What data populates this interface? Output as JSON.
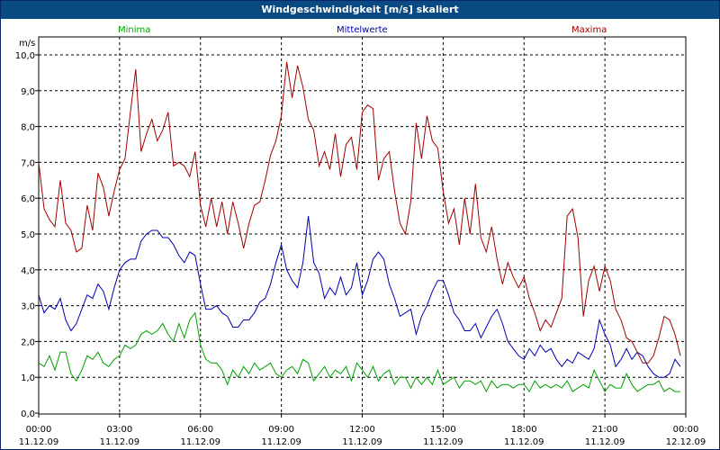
{
  "window": {
    "title": "Windgeschwindigkeit [m/s] skaliert"
  },
  "chart_data": {
    "type": "line",
    "title": "Windgeschwindigkeit [m/s] skaliert",
    "ylabel": "m/s",
    "ylim": [
      0,
      10
    ],
    "y_ticks": [
      "0,0",
      "1,0",
      "2,0",
      "3,0",
      "4,0",
      "5,0",
      "6,0",
      "7,0",
      "8,0",
      "9,0",
      "10,0"
    ],
    "x_ticks": [
      {
        "time": "00:00",
        "date": "11.12.09"
      },
      {
        "time": "03:00",
        "date": "11.12.09"
      },
      {
        "time": "06:00",
        "date": "11.12.09"
      },
      {
        "time": "09:00",
        "date": "11.12.09"
      },
      {
        "time": "12:00",
        "date": "11.12.09"
      },
      {
        "time": "15:00",
        "date": "11.12.09"
      },
      {
        "time": "18:00",
        "date": "11.12.09"
      },
      {
        "time": "21:00",
        "date": "11.12.09"
      },
      {
        "time": "00:00",
        "date": "12.12.09"
      }
    ],
    "grid": true,
    "x_hours": [
      0,
      0.2,
      0.4,
      0.6,
      0.8,
      1.0,
      1.2,
      1.4,
      1.6,
      1.8,
      2.0,
      2.2,
      2.4,
      2.6,
      2.8,
      3.0,
      3.2,
      3.4,
      3.6,
      3.8,
      4.0,
      4.2,
      4.4,
      4.6,
      4.8,
      5.0,
      5.2,
      5.4,
      5.6,
      5.8,
      6.0,
      6.2,
      6.4,
      6.6,
      6.8,
      7.0,
      7.2,
      7.4,
      7.6,
      7.8,
      8.0,
      8.2,
      8.4,
      8.6,
      8.8,
      9.0,
      9.2,
      9.4,
      9.6,
      9.8,
      10.0,
      10.2,
      10.4,
      10.6,
      10.8,
      11.0,
      11.2,
      11.4,
      11.6,
      11.8,
      12.0,
      12.2,
      12.4,
      12.6,
      12.8,
      13.0,
      13.2,
      13.4,
      13.6,
      13.8,
      14.0,
      14.2,
      14.4,
      14.6,
      14.8,
      15.0,
      15.2,
      15.4,
      15.6,
      15.8,
      16.0,
      16.2,
      16.4,
      16.6,
      16.8,
      17.0,
      17.2,
      17.4,
      17.6,
      17.8,
      18.0,
      18.2,
      18.4,
      18.6,
      18.8,
      19.0,
      19.2,
      19.4,
      19.6,
      19.8,
      20.0,
      20.2,
      20.4,
      20.6,
      20.8,
      21.0,
      21.2,
      21.4,
      21.6,
      21.8,
      22.0,
      22.2,
      22.4,
      22.6,
      22.8,
      23.0,
      23.2,
      23.4,
      23.6,
      23.8
    ],
    "series": [
      {
        "name": "Minima",
        "color": "#00a000",
        "values": [
          1.4,
          1.3,
          1.6,
          1.2,
          1.7,
          1.7,
          1.1,
          0.9,
          1.2,
          1.6,
          1.5,
          1.7,
          1.4,
          1.3,
          1.5,
          1.6,
          1.9,
          1.8,
          1.9,
          2.2,
          2.3,
          2.2,
          2.3,
          2.5,
          2.2,
          2.0,
          2.5,
          2.1,
          2.6,
          2.8,
          1.9,
          1.5,
          1.4,
          1.4,
          1.2,
          0.8,
          1.2,
          1.0,
          1.3,
          1.1,
          1.4,
          1.2,
          1.3,
          1.4,
          1.1,
          1.0,
          1.2,
          1.3,
          1.1,
          1.5,
          1.4,
          0.9,
          1.1,
          1.3,
          1.0,
          1.2,
          1.1,
          1.3,
          0.9,
          1.4,
          1.2,
          1.0,
          1.3,
          0.9,
          1.1,
          1.2,
          0.8,
          1.0,
          1.0,
          0.7,
          1.0,
          0.8,
          1.0,
          0.8,
          1.2,
          0.8,
          0.9,
          1.0,
          0.7,
          0.9,
          0.9,
          0.8,
          0.9,
          0.6,
          0.9,
          0.7,
          0.8,
          0.8,
          0.7,
          0.8,
          0.8,
          0.6,
          0.9,
          0.7,
          0.8,
          0.7,
          0.8,
          0.7,
          0.9,
          0.6,
          0.7,
          0.8,
          0.7,
          1.2,
          0.9,
          0.6,
          0.8,
          0.7,
          0.7,
          1.1,
          0.8,
          0.6,
          0.7,
          0.8,
          0.8,
          0.9,
          0.6,
          0.7,
          0.6,
          0.6
        ]
      },
      {
        "name": "Mittelwerte",
        "color": "#0000b0",
        "values": [
          3.3,
          2.8,
          3.0,
          2.9,
          3.2,
          2.6,
          2.3,
          2.5,
          2.9,
          3.3,
          3.2,
          3.6,
          3.4,
          2.9,
          3.5,
          4.0,
          4.2,
          4.3,
          4.3,
          4.8,
          5.0,
          5.1,
          5.1,
          4.9,
          4.9,
          4.7,
          4.4,
          4.2,
          4.5,
          4.4,
          3.6,
          2.9,
          2.9,
          3.0,
          2.8,
          2.7,
          2.4,
          2.4,
          2.6,
          2.6,
          2.8,
          3.1,
          3.2,
          3.6,
          4.2,
          4.7,
          4.0,
          3.7,
          3.5,
          4.2,
          5.5,
          4.2,
          3.9,
          3.2,
          3.5,
          3.3,
          3.8,
          3.3,
          3.5,
          4.2,
          3.3,
          3.7,
          4.3,
          4.5,
          4.3,
          3.6,
          3.2,
          2.7,
          2.8,
          2.9,
          2.2,
          2.7,
          3.0,
          3.4,
          3.7,
          3.7,
          3.3,
          2.8,
          2.6,
          2.3,
          2.3,
          2.5,
          2.1,
          2.4,
          2.7,
          2.9,
          2.5,
          2.0,
          1.8,
          1.6,
          1.5,
          1.8,
          1.6,
          1.9,
          1.7,
          1.8,
          1.5,
          1.3,
          1.5,
          1.4,
          1.7,
          1.6,
          1.5,
          1.8,
          2.6,
          2.2,
          1.9,
          1.3,
          1.5,
          1.8,
          1.5,
          1.7,
          1.6,
          1.3,
          1.1,
          1.0,
          1.0,
          1.1,
          1.5,
          1.3
        ]
      },
      {
        "name": "Maxima",
        "color": "#a00000",
        "values": [
          7.0,
          5.7,
          5.4,
          5.2,
          6.5,
          5.3,
          5.1,
          4.5,
          4.6,
          5.8,
          5.1,
          6.7,
          6.3,
          5.5,
          6.2,
          6.8,
          7.1,
          8.4,
          9.6,
          7.3,
          7.8,
          8.2,
          7.6,
          7.9,
          8.4,
          6.9,
          7.0,
          6.9,
          6.6,
          7.3,
          5.8,
          5.2,
          6.0,
          5.2,
          5.9,
          5.0,
          5.9,
          5.3,
          4.6,
          5.3,
          5.8,
          5.9,
          6.5,
          7.2,
          7.6,
          8.3,
          9.8,
          8.8,
          9.7,
          9.1,
          8.2,
          7.9,
          6.9,
          7.3,
          6.8,
          7.8,
          6.6,
          7.5,
          7.7,
          6.8,
          8.4,
          8.6,
          8.5,
          6.5,
          7.1,
          7.3,
          6.2,
          5.3,
          5.0,
          5.9,
          8.1,
          7.1,
          8.3,
          7.6,
          7.4,
          6.2,
          5.3,
          5.7,
          4.7,
          6.0,
          5.0,
          6.4,
          4.9,
          4.5,
          5.2,
          4.3,
          3.6,
          4.2,
          3.8,
          3.5,
          3.8,
          3.2,
          2.8,
          2.3,
          2.6,
          2.4,
          2.8,
          3.2,
          5.5,
          5.7,
          4.9,
          2.7,
          3.7,
          4.1,
          3.4,
          4.1,
          3.7,
          2.9,
          2.6,
          2.1,
          2.0,
          1.7,
          1.4,
          1.4,
          1.6,
          2.1,
          2.7,
          2.6,
          2.2,
          1.6
        ]
      }
    ]
  }
}
